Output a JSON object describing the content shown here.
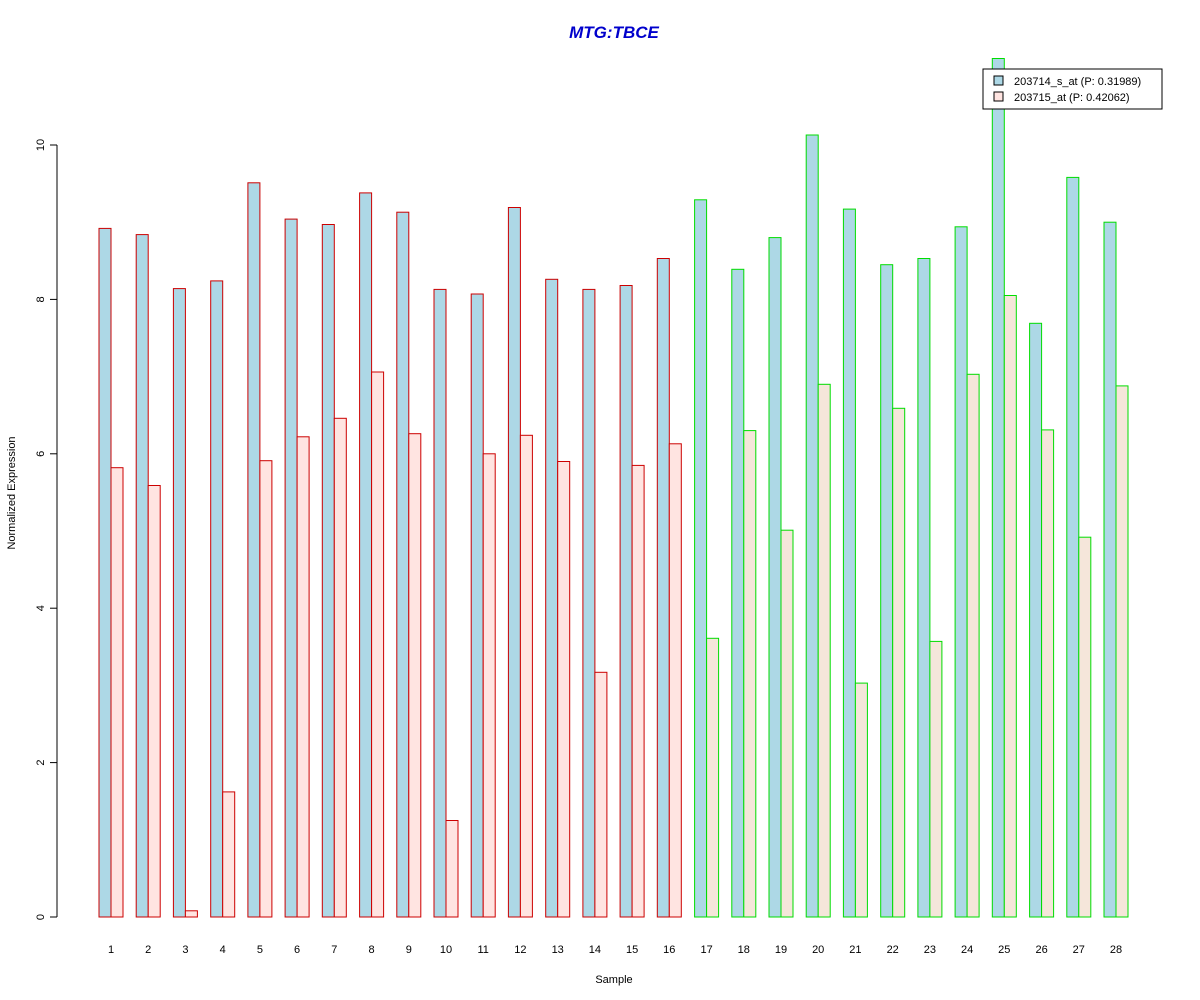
{
  "chart_data": {
    "type": "bar",
    "title": "MTG:TBCE",
    "xlabel": "Sample",
    "ylabel": "Normalized Expression",
    "ylim": [
      0,
      11.2
    ],
    "yticks": [
      0,
      2,
      4,
      6,
      8,
      10
    ],
    "grid": false,
    "legend_position": "top-right",
    "categories": [
      "1",
      "2",
      "3",
      "4",
      "5",
      "6",
      "7",
      "8",
      "9",
      "10",
      "11",
      "12",
      "13",
      "14",
      "15",
      "16",
      "17",
      "18",
      "19",
      "20",
      "21",
      "22",
      "23",
      "24",
      "25",
      "26",
      "27",
      "28"
    ],
    "series": [
      {
        "name": "203714_s_at (P: 0.31989)",
        "values": [
          8.92,
          8.84,
          8.14,
          8.24,
          9.51,
          9.04,
          8.97,
          9.38,
          9.13,
          8.13,
          8.07,
          9.19,
          8.26,
          8.13,
          8.18,
          8.53,
          9.29,
          8.39,
          8.8,
          10.13,
          9.17,
          8.45,
          8.53,
          8.94,
          11.12,
          7.69,
          9.58,
          9.0
        ]
      },
      {
        "name": "203715_at (P: 0.42062)",
        "values": [
          5.82,
          5.59,
          0.08,
          1.62,
          5.91,
          6.22,
          6.46,
          7.06,
          6.26,
          1.25,
          6.0,
          6.24,
          5.9,
          3.17,
          5.85,
          6.13,
          3.61,
          6.3,
          5.01,
          6.9,
          3.03,
          6.59,
          3.57,
          7.03,
          8.05,
          6.31,
          4.92,
          6.88
        ]
      }
    ],
    "group_sizes": [
      16,
      12
    ],
    "colors": {
      "title": "#0000cc",
      "series1_fill": "#add8e6",
      "series2_fill_group1": "#ffe4e1",
      "series2_fill_group2": "#f5e6da",
      "border_group1": "#cc0000",
      "border_group2": "#00dd00",
      "axis": "#000000"
    }
  }
}
